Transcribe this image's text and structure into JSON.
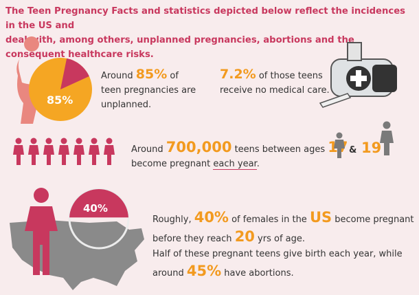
{
  "intro": {
    "line1": "The Teen Pregnancy Facts and statistics depicted below reflect the incidences in the US and",
    "line2": "deal with, among others, unplanned pregnancies, abortions and the consequent healthcare risks."
  },
  "pie": {
    "label": "85%",
    "value": 85
  },
  "fact1": {
    "pre": "Around ",
    "pct": "85%",
    "post": " of",
    "line2": "teen pregnancies are",
    "line3": "unplanned."
  },
  "fact2": {
    "pct": "7.2%",
    "post": " of those teens",
    "line2": "receive no medical care."
  },
  "fact3": {
    "pre": "Around ",
    "num": "700,000",
    "mid": " teens between ages ",
    "age1": "17",
    "amp": "&",
    "age2": "19",
    "line2a": "become pregnant ",
    "line2b": "each year",
    "line2c": "."
  },
  "gauge": {
    "label": "40%",
    "value": 40
  },
  "fact4": {
    "pre": "Roughly, ",
    "pct": "40%",
    "mid": " of females in the ",
    "us": "US",
    "post": " become pregnant",
    "line2a": "before they reach ",
    "age": "20",
    "line2b": " yrs of age."
  },
  "fact5": {
    "line1": "Half of these pregnant teens give birth each year, while",
    "line2a": "around ",
    "pct": "45%",
    "line2b": " have abortions."
  },
  "colors": {
    "pink": "#c8385e",
    "orange": "#f29a1f",
    "salmon": "#e9877f",
    "gray": "#8a8a8a"
  }
}
